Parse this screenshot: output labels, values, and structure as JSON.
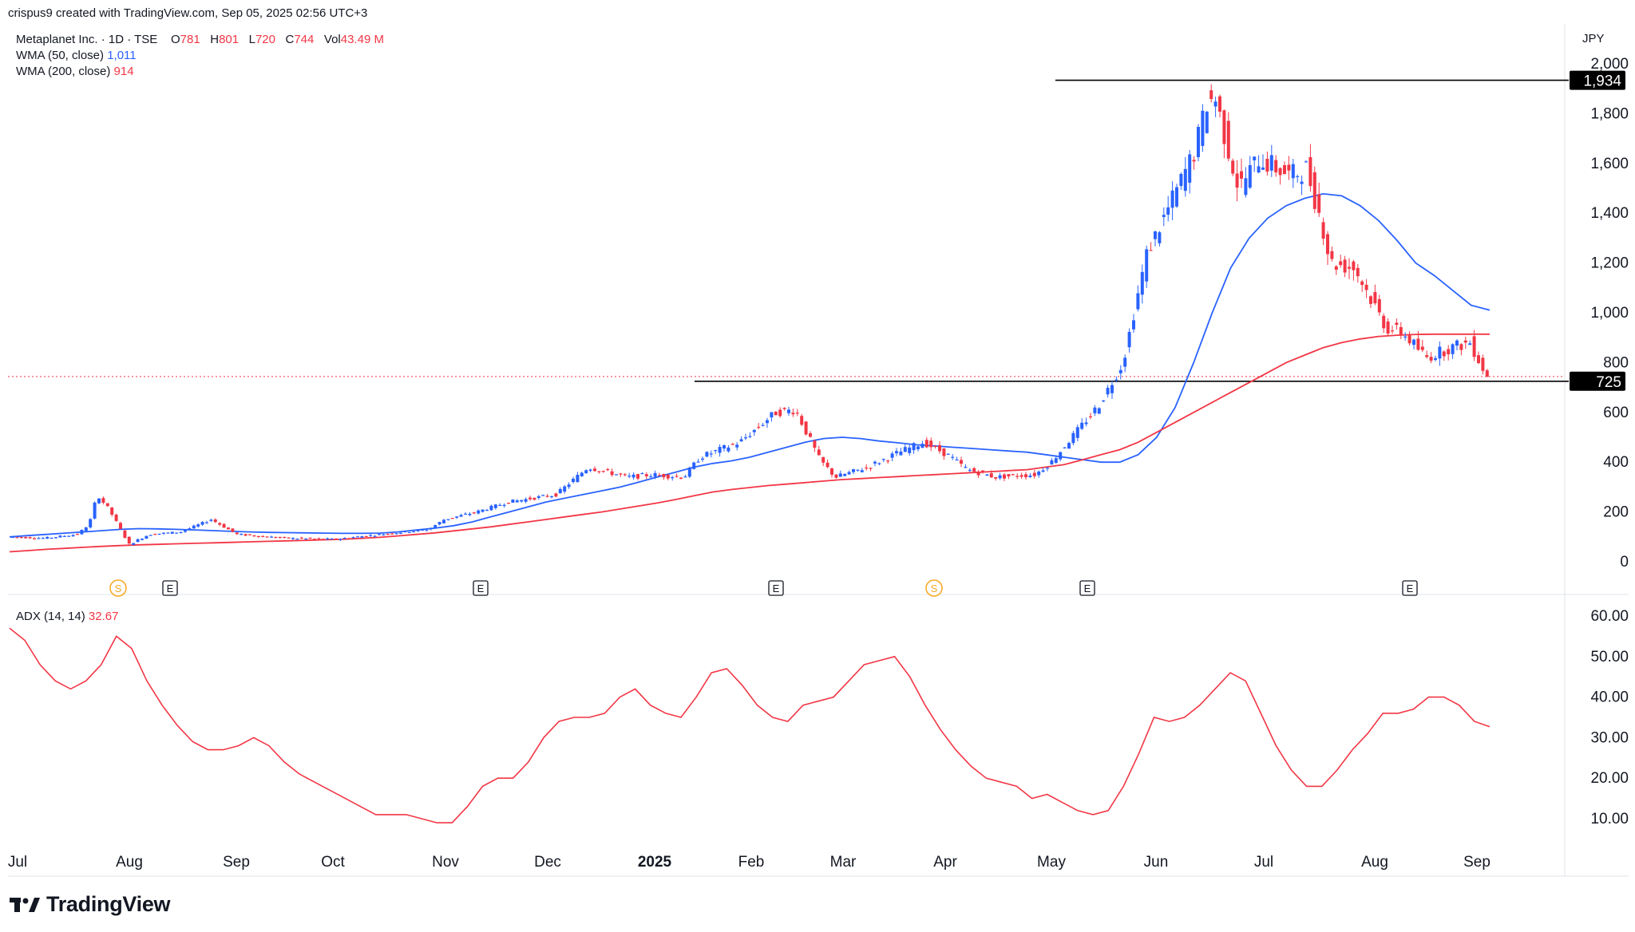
{
  "header": {
    "credit": "crispus9 created with TradingView.com, Sep 05, 2025 02:56 UTC+3",
    "symbol_line": "Metaplanet Inc. · 1D · TSE",
    "ohlc": {
      "o_label": "O",
      "o": "781",
      "h_label": "H",
      "h": "801",
      "l_label": "L",
      "l": "720",
      "c_label": "C",
      "c": "744",
      "vol_label": "Vol",
      "vol": "43.49 M"
    },
    "wma50": {
      "label": "WMA (50, close)",
      "value": "1,011"
    },
    "wma200": {
      "label": "WMA (200, close)",
      "value": "914"
    },
    "currency": "JPY"
  },
  "adx": {
    "label": "ADX (14, 14)",
    "value": "32.67"
  },
  "brand": "TradingView",
  "colors": {
    "up": "#2962ff",
    "down": "#f23645",
    "wma50": "#2962ff",
    "wma200": "#f23645",
    "adx": "#f23645",
    "level": "#000000",
    "event": "#f5a623"
  },
  "chart_data": [
    {
      "type": "candlestick",
      "title": "Metaplanet Inc. · 1D · TSE",
      "ylim": [
        0,
        2000
      ],
      "y_ticks": [
        "2,000",
        "1,800",
        "1,600",
        "1,400",
        "1,200",
        "1,000",
        "800",
        "600",
        "400",
        "200",
        "0"
      ],
      "x_ticks": [
        "Jul",
        "Aug",
        "Sep",
        "Oct",
        "Nov",
        "Dec",
        "2025",
        "Feb",
        "Mar",
        "Apr",
        "May",
        "Jun",
        "Jul",
        "Aug",
        "Sep"
      ],
      "price_labels": [
        "1,934",
        "725"
      ],
      "horizontal_levels": [
        1934,
        725
      ],
      "events": [
        "S",
        "E",
        "E",
        "E",
        "S",
        "E",
        "E"
      ],
      "series": [
        {
          "name": "WMA (50, close)",
          "values": [
            100,
            105,
            110,
            115,
            120,
            125,
            130,
            133,
            132,
            130,
            128,
            125,
            122,
            120,
            118,
            117,
            116,
            115,
            114,
            114,
            115,
            120,
            128,
            135,
            145,
            160,
            180,
            200,
            220,
            240,
            255,
            270,
            285,
            300,
            320,
            340,
            360,
            380,
            395,
            405,
            420,
            440,
            460,
            480,
            495,
            500,
            495,
            485,
            478,
            470,
            465,
            460,
            455,
            450,
            445,
            440,
            430,
            420,
            410,
            400,
            400,
            430,
            500,
            620,
            800,
            1000,
            1180,
            1300,
            1380,
            1430,
            1460,
            1478,
            1470,
            1430,
            1370,
            1290,
            1200,
            1150,
            1090,
            1030,
            1011
          ]
        },
        {
          "name": "WMA (200, close)",
          "values": [
            40,
            45,
            50,
            54,
            58,
            62,
            65,
            68,
            70,
            72,
            74,
            76,
            78,
            80,
            82,
            84,
            86,
            88,
            90,
            94,
            98,
            104,
            110,
            116,
            124,
            132,
            140,
            150,
            160,
            170,
            180,
            190,
            200,
            212,
            224,
            236,
            250,
            265,
            280,
            290,
            298,
            306,
            312,
            318,
            324,
            330,
            334,
            338,
            342,
            346,
            350,
            354,
            358,
            362,
            366,
            370,
            380,
            390,
            410,
            430,
            450,
            480,
            520,
            560,
            600,
            640,
            680,
            720,
            760,
            800,
            830,
            860,
            880,
            895,
            905,
            910,
            913,
            914,
            914,
            914,
            914
          ]
        }
      ]
    },
    {
      "type": "line",
      "title": "ADX (14, 14)",
      "ylim": [
        5,
        62
      ],
      "y_ticks": [
        "60.00",
        "50.00",
        "40.00",
        "30.00",
        "20.00",
        "10.00"
      ],
      "series": [
        {
          "name": "ADX (14, 14)",
          "values": [
            57,
            54,
            48,
            44,
            42,
            44,
            48,
            55,
            52,
            44,
            38,
            33,
            29,
            27,
            27,
            28,
            30,
            28,
            24,
            21,
            19,
            17,
            15,
            13,
            11,
            11,
            11,
            10,
            9,
            9,
            13,
            18,
            20,
            20,
            24,
            30,
            34,
            35,
            35,
            36,
            40,
            42,
            38,
            36,
            35,
            40,
            46,
            47,
            43,
            38,
            35,
            34,
            38,
            39,
            40,
            44,
            48,
            49,
            50,
            45,
            38,
            32,
            27,
            23,
            20,
            19,
            18,
            15,
            16,
            14,
            12,
            11,
            12,
            18,
            26,
            35,
            34,
            35,
            38,
            42,
            46,
            44,
            36,
            28,
            22,
            18,
            18,
            22,
            27,
            31,
            36,
            36,
            37,
            40,
            40,
            38,
            34,
            32.67
          ]
        }
      ]
    }
  ]
}
